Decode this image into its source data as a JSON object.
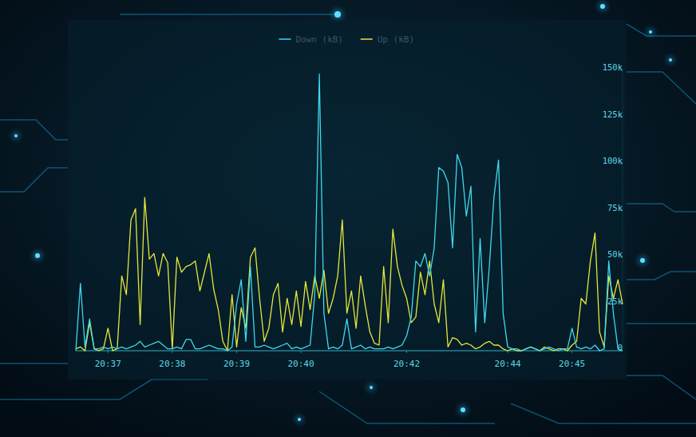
{
  "chart_data": {
    "type": "line",
    "categories": [
      null,
      null,
      null,
      null,
      null,
      null,
      null,
      "20:37",
      null,
      null,
      null,
      null,
      null,
      null,
      null,
      null,
      null,
      null,
      null,
      null,
      null,
      "20:38",
      null,
      null,
      null,
      null,
      null,
      null,
      null,
      null,
      null,
      null,
      null,
      null,
      null,
      "20:39",
      null,
      null,
      null,
      null,
      null,
      null,
      null,
      null,
      null,
      null,
      null,
      null,
      null,
      "20:40",
      null,
      null,
      null,
      null,
      null,
      null,
      null,
      null,
      null,
      null,
      null,
      null,
      null,
      null,
      null,
      null,
      null,
      null,
      null,
      null,
      null,
      null,
      "20:42",
      null,
      null,
      null,
      null,
      null,
      null,
      null,
      null,
      null,
      null,
      null,
      null,
      null,
      null,
      null,
      null,
      null,
      null,
      null,
      null,
      null,
      "20:44",
      null,
      null,
      null,
      null,
      null,
      null,
      null,
      null,
      null,
      null,
      null,
      null,
      null,
      "20:45",
      null,
      null,
      null,
      null,
      null,
      null,
      null,
      null,
      null,
      null,
      null
    ],
    "series": [
      {
        "name": "Down (kB)",
        "color": "#3fd8ec",
        "values": [
          0,
          36000,
          2000,
          17000,
          1000,
          1000,
          2000,
          1000,
          2000,
          1000,
          2000,
          1000,
          2000,
          3000,
          5000,
          2000,
          3000,
          4000,
          5000,
          3000,
          1000,
          1000,
          2000,
          1000,
          6000,
          6000,
          1000,
          1000,
          2000,
          3000,
          2000,
          1000,
          1000,
          0,
          2000,
          25000,
          38000,
          5000,
          45000,
          2000,
          2000,
          3000,
          2000,
          1000,
          2000,
          3000,
          4000,
          1000,
          2000,
          1000,
          2000,
          3000,
          30000,
          148000,
          20000,
          1000,
          2000,
          1000,
          3000,
          17000,
          1000,
          2000,
          3000,
          1000,
          2000,
          1000,
          1000,
          1000,
          2000,
          1000,
          2000,
          3000,
          8000,
          18000,
          48000,
          45000,
          52000,
          40000,
          55000,
          98000,
          96000,
          90000,
          55000,
          105000,
          98000,
          72000,
          88000,
          10000,
          60000,
          15000,
          45000,
          82000,
          102000,
          20000,
          2000,
          1000,
          1000,
          0,
          1000,
          2000,
          1000,
          0,
          1000,
          2000,
          1000,
          0,
          1000,
          1000,
          12000,
          2000,
          1000,
          2000,
          1000,
          3000,
          0,
          1000,
          48000,
          20000,
          1000,
          0
        ]
      },
      {
        "name": "Up (kB)",
        "color": "#e6e63c",
        "values": [
          1000,
          2000,
          0,
          15000,
          1000,
          0,
          1000,
          12000,
          0,
          1000,
          40000,
          30000,
          70000,
          76000,
          14000,
          82000,
          49000,
          52000,
          40000,
          52000,
          47000,
          1000,
          50000,
          42000,
          45000,
          46000,
          48000,
          32000,
          42000,
          52000,
          33000,
          22000,
          5000,
          0,
          30000,
          2000,
          23000,
          12000,
          50000,
          55000,
          28000,
          5000,
          12000,
          30000,
          36000,
          10000,
          28000,
          14000,
          32000,
          13000,
          37000,
          22000,
          40000,
          28000,
          43000,
          20000,
          28000,
          40000,
          70000,
          20000,
          32000,
          12000,
          40000,
          24000,
          10000,
          4000,
          3000,
          45000,
          15000,
          65000,
          45000,
          35000,
          28000,
          15000,
          18000,
          42000,
          30000,
          48000,
          25000,
          15000,
          38000,
          2000,
          7000,
          6000,
          3000,
          4000,
          3000,
          1000,
          2000,
          4000,
          5000,
          3000,
          3000,
          1000,
          0,
          1000,
          0,
          0,
          1000,
          2000,
          1000,
          0,
          2000,
          1000,
          0,
          1000,
          1000,
          0,
          3000,
          5000,
          28000,
          25000,
          48000,
          63000,
          10000,
          2000,
          40000,
          28000,
          38000,
          25000
        ]
      }
    ],
    "ylim": [
      0,
      150000
    ],
    "yticks": [
      0,
      {
        "value": 25000,
        "label": "25k"
      },
      {
        "value": 50000,
        "label": "50k"
      },
      {
        "value": 75000,
        "label": "75k"
      },
      {
        "value": 100000,
        "label": "100k"
      },
      {
        "value": 125000,
        "label": "125k"
      },
      {
        "value": 150000,
        "label": "150k"
      }
    ],
    "grid": false,
    "legend": "top"
  }
}
